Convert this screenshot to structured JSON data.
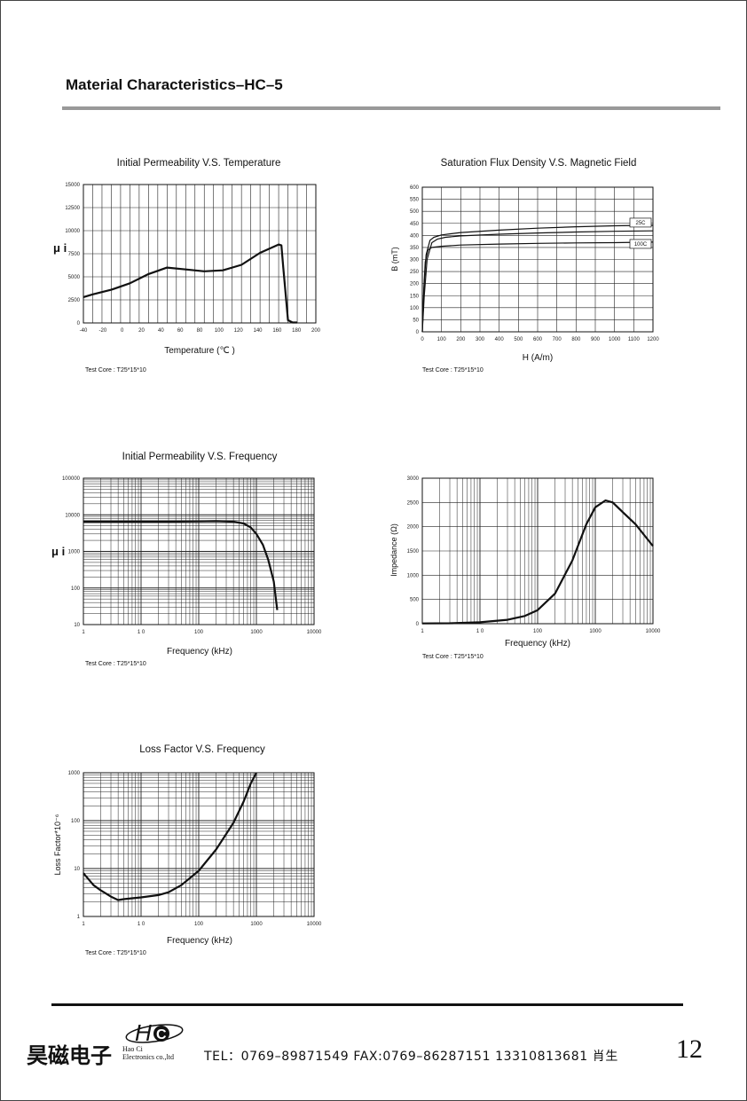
{
  "page": {
    "title": "Material Characteristics–HC–5",
    "test_core": "Test Core : T25*15*10",
    "page_number": "12"
  },
  "footer": {
    "company_cn": "昊磁电子",
    "logo_text": "HC",
    "company_en_line1": "Hao Ci",
    "company_en_line2": "Electronics co.,ltd",
    "contact": "TEL：0769–89871549  FAX:0769–86287151  13310813681 肖生"
  },
  "chart_data": [
    {
      "id": "perm-temp",
      "type": "line",
      "title": "Initial Permeability V.S. Temperature",
      "xlabel": "Temperature (℃ )",
      "ylabel": "μ i",
      "x_ticks": [
        "-40",
        "-20",
        "0",
        "20",
        "40",
        "60",
        "80",
        "100",
        "120",
        "140",
        "160",
        "180",
        "200"
      ],
      "y_ticks": [
        "0",
        "2500",
        "5000",
        "7500",
        "10000",
        "12500",
        "15000"
      ],
      "xlim": [
        -50,
        200
      ],
      "ylim": [
        0,
        15000
      ],
      "series": [
        {
          "x": [
            -50,
            -40,
            -20,
            0,
            20,
            40,
            60,
            80,
            100,
            120,
            140,
            160,
            163,
            165,
            170,
            175,
            180
          ],
          "y": [
            2800,
            3100,
            3600,
            4300,
            5300,
            6000,
            5800,
            5600,
            5700,
            6300,
            7600,
            8500,
            8400,
            6000,
            300,
            50,
            50
          ]
        }
      ]
    },
    {
      "id": "flux-field",
      "type": "line",
      "title": "Saturation Flux Density V.S. Magnetic Field",
      "xlabel": "H (A/m)",
      "ylabel": "B (mT)",
      "x_ticks": [
        "0",
        "100",
        "200",
        "300",
        "400",
        "500",
        "600",
        "700",
        "800",
        "900",
        "1000",
        "1100",
        "1200"
      ],
      "y_ticks": [
        "0",
        "50",
        "100",
        "150",
        "200",
        "250",
        "300",
        "350",
        "400",
        "450",
        "500",
        "550",
        "600"
      ],
      "xlim": [
        0,
        1200
      ],
      "ylim": [
        0,
        600
      ],
      "series": [
        {
          "name": "25C",
          "x": [
            0,
            10,
            20,
            40,
            60,
            100,
            200,
            400,
            600,
            800,
            1000,
            1200
          ],
          "y": [
            0,
            200,
            320,
            380,
            392,
            402,
            412,
            422,
            430,
            436,
            440,
            442
          ]
        },
        {
          "name": "100C",
          "x": [
            0,
            8,
            15,
            30,
            50,
            100,
            200,
            400,
            600,
            800,
            1000,
            1200
          ],
          "y": [
            0,
            180,
            290,
            340,
            350,
            355,
            360,
            364,
            367,
            369,
            370,
            372
          ]
        },
        {
          "x": [
            0,
            10,
            25,
            50,
            80,
            120,
            200,
            400,
            600,
            800,
            1000,
            1200
          ],
          "y": [
            0,
            150,
            300,
            370,
            385,
            392,
            398,
            405,
            410,
            414,
            417,
            419
          ]
        }
      ]
    },
    {
      "id": "perm-freq",
      "type": "line",
      "title": "Initial Permeability V.S. Frequency",
      "xlabel": "Frequency (kHz)",
      "ylabel": "μ i",
      "x_ticks": [
        "1",
        "1 0",
        "100",
        "1000",
        "10000"
      ],
      "y_ticks": [
        "10",
        "100",
        "1000",
        "10000",
        "100000"
      ],
      "xlim": [
        1,
        10000
      ],
      "ylim": [
        10,
        100000
      ],
      "xlog": true,
      "ylog": true,
      "series": [
        {
          "x": [
            1,
            3,
            10,
            30,
            100,
            200,
            400,
            600,
            800,
            1000,
            1300,
            1600,
            2000,
            2300
          ],
          "y": [
            6500,
            6500,
            6500,
            6500,
            6600,
            6700,
            6500,
            5800,
            4500,
            3000,
            1500,
            600,
            150,
            25
          ]
        }
      ]
    },
    {
      "id": "impedance-freq",
      "type": "line",
      "title": "",
      "xlabel": "Frequency (kHz)",
      "ylabel": "Impedance (Ω)",
      "x_ticks": [
        "1",
        "1 0",
        "100",
        "1000",
        "10000"
      ],
      "y_ticks": [
        "0",
        "500",
        "1000",
        "1500",
        "2000",
        "2500",
        "3000"
      ],
      "xlim": [
        1,
        10000
      ],
      "ylim": [
        0,
        3000
      ],
      "xlog": true,
      "series": [
        {
          "x": [
            1,
            3,
            10,
            30,
            60,
            100,
            200,
            400,
            700,
            1000,
            1500,
            2000,
            3000,
            5000,
            10000
          ],
          "y": [
            5,
            10,
            30,
            80,
            160,
            280,
            620,
            1300,
            2050,
            2400,
            2540,
            2500,
            2300,
            2050,
            1600
          ]
        }
      ]
    },
    {
      "id": "loss-freq",
      "type": "line",
      "title": "Loss Factor V.S. Frequency",
      "xlabel": "Frequency (kHz)",
      "ylabel": "Loss Factor*10⁻⁶",
      "x_ticks": [
        "1",
        "1 0",
        "100",
        "1000",
        "10000"
      ],
      "y_ticks": [
        "1",
        "10",
        "100",
        "1000"
      ],
      "xlim": [
        1,
        10000
      ],
      "ylim": [
        1,
        1000
      ],
      "xlog": true,
      "ylog": true,
      "series": [
        {
          "x": [
            1,
            1.5,
            2,
            3,
            4,
            5,
            7,
            10,
            20,
            30,
            50,
            100,
            200,
            400,
            600,
            800,
            1000
          ],
          "y": [
            8,
            4.5,
            3.5,
            2.6,
            2.2,
            2.3,
            2.4,
            2.5,
            2.8,
            3.2,
            4.5,
            9,
            25,
            90,
            250,
            600,
            1000
          ]
        }
      ]
    }
  ]
}
